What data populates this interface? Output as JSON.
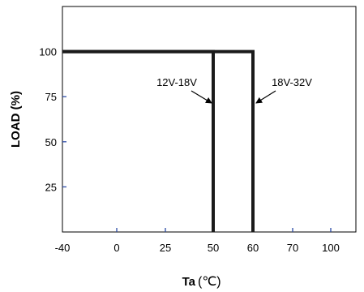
{
  "chart_data": {
    "type": "line",
    "title": "",
    "xlabel": "Ta",
    "xlabel_unit": "(℃)",
    "ylabel": "LOAD (%)",
    "x_ticks": [
      "-40",
      "0",
      "25",
      "50",
      "60",
      "70",
      "100"
    ],
    "y_ticks": [
      "25",
      "50",
      "75",
      "100"
    ],
    "ylim": [
      0,
      125
    ],
    "grid": false,
    "series": [
      {
        "name": "12V-18V",
        "points": [
          {
            "x": "-40",
            "y": 100
          },
          {
            "x": "50",
            "y": 100
          },
          {
            "x": "50",
            "y": 0
          }
        ]
      },
      {
        "name": "18V-32V",
        "points": [
          {
            "x": "-40",
            "y": 100
          },
          {
            "x": "60",
            "y": 100
          },
          {
            "x": "60",
            "y": 0
          }
        ]
      }
    ],
    "annotations": [
      {
        "text": "12V-18V",
        "series": "12V-18V"
      },
      {
        "text": "18V-32V",
        "series": "18V-32V"
      }
    ],
    "colors": {
      "line": "#1a1a1a",
      "tick": "#2b4aa6",
      "axis": "#000000"
    }
  }
}
